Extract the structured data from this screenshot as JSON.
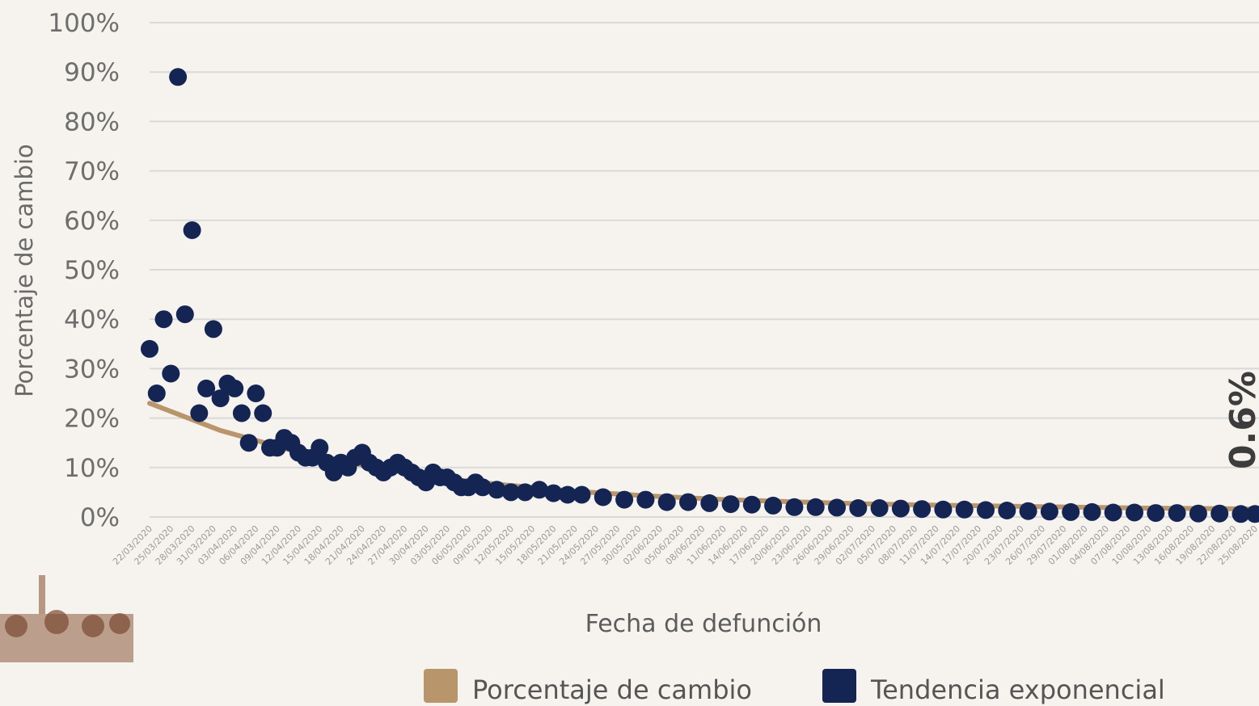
{
  "chart_data": {
    "type": "scatter",
    "ylabel": "Porcentaje de cambio",
    "xlabel": "Fecha de defunción",
    "y_ticks": [
      "0%",
      "10%",
      "20%",
      "30%",
      "40%",
      "50%",
      "60%",
      "70%",
      "80%",
      "90%",
      "100%"
    ],
    "ylim": [
      0,
      100
    ],
    "grid": true,
    "x_ticks": [
      "22/03/2020",
      "25/03/2020",
      "28/03/2020",
      "31/03/2020",
      "03/04/2020",
      "06/04/2020",
      "09/04/2020",
      "12/04/2020",
      "15/04/2020",
      "18/04/2020",
      "21/04/2020",
      "24/04/2020",
      "27/04/2020",
      "30/04/2020",
      "03/05/2020",
      "06/05/2020",
      "09/05/2020",
      "12/05/2020",
      "15/05/2020",
      "18/05/2020",
      "21/05/2020",
      "24/05/2020",
      "27/05/2020",
      "30/05/2020",
      "02/06/2020",
      "05/06/2020",
      "08/06/2020",
      "11/06/2020",
      "14/06/2020",
      "17/06/2020",
      "20/06/2020",
      "23/06/2020",
      "26/06/2020",
      "29/06/2020",
      "02/07/2020",
      "05/07/2020",
      "08/07/2020",
      "11/07/2020",
      "14/07/2020",
      "17/07/2020",
      "20/07/2020",
      "23/07/2020",
      "26/07/2020",
      "29/07/2020",
      "01/08/2020",
      "04/08/2020",
      "07/08/2020",
      "10/08/2020",
      "13/08/2020",
      "16/08/2020",
      "19/08/2020",
      "22/08/2020",
      "25/08/2020"
    ],
    "x_range": [
      "22/03/2020",
      "25/08/2020"
    ],
    "legend": {
      "placement": "bottom",
      "entries": [
        {
          "label": "Porcentaje de cambio",
          "color": "#b8956a"
        },
        {
          "label": "Tendencia exponencial",
          "color": "#142554"
        }
      ]
    },
    "series": [
      {
        "name": "Porcentaje de cambio",
        "kind": "points",
        "color": "#142554",
        "points": [
          [
            "22/03/2020",
            34
          ],
          [
            "23/03/2020",
            25
          ],
          [
            "24/03/2020",
            40
          ],
          [
            "25/03/2020",
            29
          ],
          [
            "26/03/2020",
            89
          ],
          [
            "27/03/2020",
            41
          ],
          [
            "28/03/2020",
            58
          ],
          [
            "29/03/2020",
            21
          ],
          [
            "30/03/2020",
            26
          ],
          [
            "31/03/2020",
            38
          ],
          [
            "01/04/2020",
            24
          ],
          [
            "02/04/2020",
            27
          ],
          [
            "03/04/2020",
            26
          ],
          [
            "04/04/2020",
            21
          ],
          [
            "05/04/2020",
            15
          ],
          [
            "06/04/2020",
            25
          ],
          [
            "07/04/2020",
            21
          ],
          [
            "08/04/2020",
            14
          ],
          [
            "09/04/2020",
            14
          ],
          [
            "10/04/2020",
            16
          ],
          [
            "11/04/2020",
            15
          ],
          [
            "12/04/2020",
            13
          ],
          [
            "13/04/2020",
            12
          ],
          [
            "14/04/2020",
            12
          ],
          [
            "15/04/2020",
            14
          ],
          [
            "16/04/2020",
            11
          ],
          [
            "17/04/2020",
            9
          ],
          [
            "18/04/2020",
            11
          ],
          [
            "19/04/2020",
            10
          ],
          [
            "20/04/2020",
            12
          ],
          [
            "21/04/2020",
            13
          ],
          [
            "22/04/2020",
            11
          ],
          [
            "23/04/2020",
            10
          ],
          [
            "24/04/2020",
            9
          ],
          [
            "25/04/2020",
            10
          ],
          [
            "26/04/2020",
            11
          ],
          [
            "27/04/2020",
            10
          ],
          [
            "28/04/2020",
            9
          ],
          [
            "29/04/2020",
            8
          ],
          [
            "30/04/2020",
            7
          ],
          [
            "01/05/2020",
            9
          ],
          [
            "02/05/2020",
            8
          ],
          [
            "03/05/2020",
            8
          ],
          [
            "04/05/2020",
            7
          ],
          [
            "05/05/2020",
            6
          ],
          [
            "06/05/2020",
            6
          ],
          [
            "07/05/2020",
            7
          ],
          [
            "08/05/2020",
            6
          ],
          [
            "10/05/2020",
            5.5
          ],
          [
            "12/05/2020",
            5
          ],
          [
            "14/05/2020",
            5
          ],
          [
            "16/05/2020",
            5.5
          ],
          [
            "18/05/2020",
            4.8
          ],
          [
            "20/05/2020",
            4.5
          ],
          [
            "22/05/2020",
            4.5
          ],
          [
            "25/05/2020",
            4
          ],
          [
            "28/05/2020",
            3.5
          ],
          [
            "31/05/2020",
            3.5
          ],
          [
            "03/06/2020",
            3
          ],
          [
            "06/06/2020",
            3
          ],
          [
            "09/06/2020",
            2.8
          ],
          [
            "12/06/2020",
            2.6
          ],
          [
            "15/06/2020",
            2.5
          ],
          [
            "18/06/2020",
            2.3
          ],
          [
            "21/06/2020",
            2
          ],
          [
            "24/06/2020",
            2
          ],
          [
            "27/06/2020",
            1.9
          ],
          [
            "30/06/2020",
            1.8
          ],
          [
            "03/07/2020",
            1.8
          ],
          [
            "06/07/2020",
            1.7
          ],
          [
            "09/07/2020",
            1.6
          ],
          [
            "12/07/2020",
            1.5
          ],
          [
            "15/07/2020",
            1.5
          ],
          [
            "18/07/2020",
            1.4
          ],
          [
            "21/07/2020",
            1.3
          ],
          [
            "24/07/2020",
            1.2
          ],
          [
            "27/07/2020",
            1.1
          ],
          [
            "30/07/2020",
            1.0
          ],
          [
            "02/08/2020",
            1.0
          ],
          [
            "05/08/2020",
            0.9
          ],
          [
            "08/08/2020",
            0.9
          ],
          [
            "11/08/2020",
            0.8
          ],
          [
            "14/08/2020",
            0.8
          ],
          [
            "17/08/2020",
            0.7
          ],
          [
            "20/08/2020",
            0.7
          ],
          [
            "23/08/2020",
            0.6
          ],
          [
            "25/08/2020",
            0.6
          ]
        ]
      },
      {
        "name": "Tendencia exponencial",
        "kind": "line",
        "color": "#b8956a",
        "points": [
          [
            "22/03/2020",
            23
          ],
          [
            "01/04/2020",
            17.5
          ],
          [
            "11/04/2020",
            13.5
          ],
          [
            "21/04/2020",
            10.5
          ],
          [
            "01/05/2020",
            8
          ],
          [
            "11/05/2020",
            6.5
          ],
          [
            "21/05/2020",
            5.2
          ],
          [
            "31/05/2020",
            4.3
          ],
          [
            "10/06/2020",
            3.6
          ],
          [
            "20/06/2020",
            3.1
          ],
          [
            "30/06/2020",
            2.7
          ],
          [
            "10/07/2020",
            2.4
          ],
          [
            "20/07/2020",
            2.2
          ],
          [
            "30/07/2020",
            2.0
          ],
          [
            "09/08/2020",
            1.8
          ],
          [
            "19/08/2020",
            1.7
          ],
          [
            "25/08/2020",
            1.6
          ]
        ]
      }
    ],
    "end_annotation": "0.6%"
  }
}
